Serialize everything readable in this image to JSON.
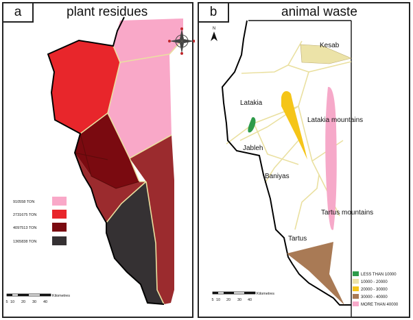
{
  "panel_a": {
    "letter": "a",
    "title": "plant residues",
    "legend": [
      {
        "label": "910558 TON",
        "color": "#f9a8c8"
      },
      {
        "label": "2731675 TON",
        "color": "#e8262b"
      },
      {
        "label": "4097513 TON",
        "color": "#7a0a10"
      },
      {
        "label": "1365838 TON",
        "color": "#353133"
      }
    ],
    "scale": {
      "ticks": [
        "5",
        "10",
        "20",
        "30",
        "40"
      ],
      "unit": "Kilometres"
    },
    "compass": "compass-rose-icon"
  },
  "panel_b": {
    "letter": "b",
    "title": "animal waste",
    "north": "N",
    "places": [
      "Kesab",
      "Latakia",
      "Latakia mountains",
      "Jableh",
      "Baniyas",
      "Tartus mountains",
      "Tartus"
    ],
    "legend": [
      {
        "label": "LESS THAN 10000",
        "color": "#2e9b4a"
      },
      {
        "label": "10000 - 20000",
        "color": "#ece3a8"
      },
      {
        "label": "20000 - 30000",
        "color": "#f5c518"
      },
      {
        "label": "30000 - 40000",
        "color": "#a97a55"
      },
      {
        "label": "MORE THAN 40000",
        "color": "#f6a9c9"
      }
    ],
    "scale": {
      "ticks": [
        "5",
        "10",
        "20",
        "30",
        "40"
      ],
      "unit": "Kilometres"
    }
  }
}
